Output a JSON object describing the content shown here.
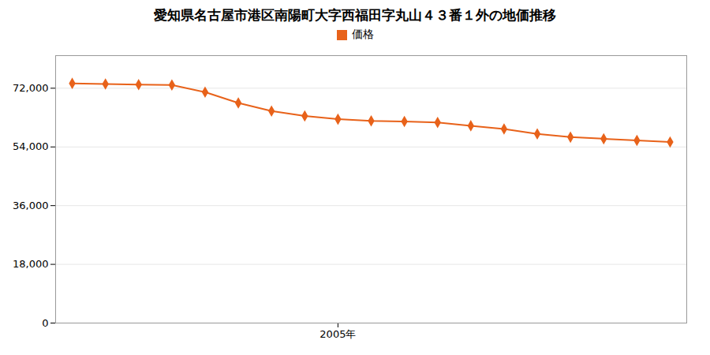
{
  "chart_data": {
    "type": "line",
    "title": "愛知県名古屋市港区南陽町大字西福田字丸山４３番１外の地価推移",
    "x": [
      1997,
      1998,
      1999,
      2000,
      2001,
      2002,
      2003,
      2004,
      2005,
      2006,
      2007,
      2008,
      2009,
      2010,
      2011,
      2012,
      2013,
      2014,
      2015
    ],
    "series": [
      {
        "name": "価格",
        "color": "#e8621a",
        "marker": "diamond",
        "values": [
          73500,
          73300,
          73100,
          73000,
          70800,
          67500,
          65000,
          63500,
          62500,
          62000,
          61800,
          61500,
          60500,
          59500,
          58000,
          57000,
          56500,
          56000,
          55500
        ]
      }
    ],
    "xlim": [
      1996.5,
      2015.5
    ],
    "xticks": [
      {
        "value": 2005,
        "label": "2005年"
      }
    ],
    "ylim": [
      0,
      82000
    ],
    "yticks": [
      0,
      {
        "value": 18000,
        "label": "18,000"
      },
      {
        "value": 36000,
        "label": "36,000"
      },
      {
        "value": 54000,
        "label": "54,000"
      },
      {
        "value": 72000,
        "label": "72,000"
      }
    ],
    "grid": "y",
    "legend": "top"
  }
}
